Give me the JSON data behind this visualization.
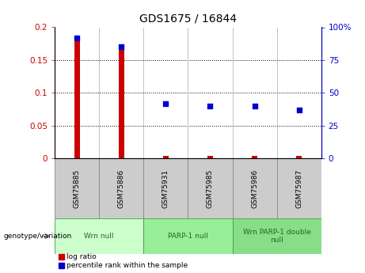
{
  "title": "GDS1675 / 16844",
  "samples": [
    "GSM75885",
    "GSM75886",
    "GSM75931",
    "GSM75985",
    "GSM75986",
    "GSM75987"
  ],
  "log_ratio": [
    0.18,
    0.165,
    0.004,
    0.004,
    0.004,
    0.004
  ],
  "percentile_rank": [
    92,
    85,
    42,
    40,
    40,
    37
  ],
  "left_ylim": [
    0,
    0.2
  ],
  "right_ylim": [
    0,
    100
  ],
  "left_yticks": [
    0,
    0.05,
    0.1,
    0.15,
    0.2
  ],
  "left_yticklabels": [
    "0",
    "0.05",
    "0.1",
    "0.15",
    "0.2"
  ],
  "right_yticks": [
    0,
    25,
    50,
    75,
    100
  ],
  "right_yticklabels": [
    "0",
    "25",
    "50",
    "75",
    "100%"
  ],
  "dotted_lines": [
    0.05,
    0.1,
    0.15
  ],
  "bar_color": "#cc0000",
  "scatter_color": "#0000cc",
  "groups": [
    {
      "label": "Wrn null",
      "samples": [
        "GSM75885",
        "GSM75886"
      ],
      "color": "#ccffcc"
    },
    {
      "label": "PARP-1 null",
      "samples": [
        "GSM75931",
        "GSM75985"
      ],
      "color": "#99ee99"
    },
    {
      "label": "Wrn PARP-1 double\nnull",
      "samples": [
        "GSM75986",
        "GSM75987"
      ],
      "color": "#88dd88"
    }
  ],
  "sample_box_color": "#cccccc",
  "legend_items": [
    {
      "label": "log ratio",
      "color": "#cc0000"
    },
    {
      "label": "percentile rank within the sample",
      "color": "#0000cc"
    }
  ],
  "genotype_label": "genotype/variation",
  "title_fontsize": 10,
  "tick_fontsize": 7.5,
  "label_fontsize": 6.5
}
